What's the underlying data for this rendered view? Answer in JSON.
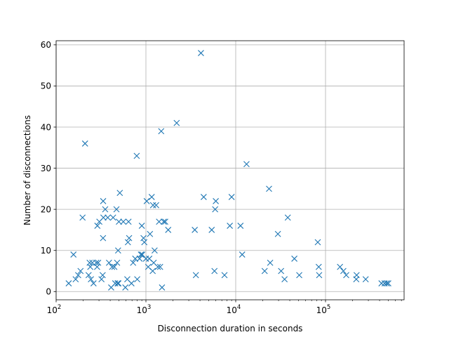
{
  "chart_data": {
    "type": "scatter",
    "title": "",
    "xlabel": "Disconnection duration in seconds",
    "ylabel": "Number of disconnections",
    "xscale": "log",
    "xlim": [
      100,
      750000
    ],
    "ylim": [
      -2,
      61
    ],
    "grid": true,
    "marker": "x",
    "color": "#1f77b4",
    "xticks": [
      {
        "value": 100,
        "base": "10",
        "exp": "2"
      },
      {
        "value": 1000,
        "base": "10",
        "exp": "3"
      },
      {
        "value": 10000,
        "base": "10",
        "exp": "4"
      },
      {
        "value": 100000,
        "base": "10",
        "exp": "5"
      }
    ],
    "yticks": [
      {
        "value": 0,
        "label": "0"
      },
      {
        "value": 10,
        "label": "10"
      },
      {
        "value": 20,
        "label": "20"
      },
      {
        "value": 30,
        "label": "30"
      },
      {
        "value": 40,
        "label": "40"
      },
      {
        "value": 50,
        "label": "50"
      },
      {
        "value": 60,
        "label": "60"
      }
    ],
    "points": [
      [
        138,
        2
      ],
      [
        156,
        9
      ],
      [
        165,
        3
      ],
      [
        176,
        4
      ],
      [
        187,
        5
      ],
      [
        197,
        18
      ],
      [
        210,
        36
      ],
      [
        230,
        4
      ],
      [
        236,
        7
      ],
      [
        240,
        6
      ],
      [
        244,
        3
      ],
      [
        253,
        7
      ],
      [
        261,
        2
      ],
      [
        280,
        7
      ],
      [
        286,
        6
      ],
      [
        288,
        16
      ],
      [
        294,
        7
      ],
      [
        303,
        17
      ],
      [
        320,
        3
      ],
      [
        330,
        4
      ],
      [
        333,
        13
      ],
      [
        334,
        22
      ],
      [
        336,
        18
      ],
      [
        352,
        20
      ],
      [
        376,
        18
      ],
      [
        388,
        7
      ],
      [
        410,
        1
      ],
      [
        420,
        6
      ],
      [
        431,
        18
      ],
      [
        445,
        6
      ],
      [
        455,
        2
      ],
      [
        470,
        20
      ],
      [
        478,
        7
      ],
      [
        484,
        2
      ],
      [
        490,
        10
      ],
      [
        494,
        2
      ],
      [
        500,
        17
      ],
      [
        512,
        24
      ],
      [
        560,
        17
      ],
      [
        590,
        1
      ],
      [
        620,
        3
      ],
      [
        630,
        12
      ],
      [
        640,
        17
      ],
      [
        650,
        13
      ],
      [
        690,
        2
      ],
      [
        720,
        7
      ],
      [
        760,
        8
      ],
      [
        790,
        33
      ],
      [
        800,
        3
      ],
      [
        850,
        8
      ],
      [
        880,
        9
      ],
      [
        900,
        16
      ],
      [
        910,
        9
      ],
      [
        940,
        13
      ],
      [
        960,
        12
      ],
      [
        1000,
        8
      ],
      [
        1020,
        22
      ],
      [
        1060,
        6
      ],
      [
        1090,
        8
      ],
      [
        1110,
        14
      ],
      [
        1160,
        23
      ],
      [
        1190,
        5
      ],
      [
        1200,
        21
      ],
      [
        1220,
        7
      ],
      [
        1250,
        10
      ],
      [
        1300,
        21
      ],
      [
        1360,
        6
      ],
      [
        1400,
        17
      ],
      [
        1440,
        6
      ],
      [
        1480,
        39
      ],
      [
        1510,
        1
      ],
      [
        1580,
        17
      ],
      [
        1640,
        17
      ],
      [
        1770,
        15
      ],
      [
        2200,
        41
      ],
      [
        3500,
        15
      ],
      [
        3600,
        4
      ],
      [
        4100,
        58
      ],
      [
        4400,
        23
      ],
      [
        5400,
        15
      ],
      [
        5800,
        5
      ],
      [
        5900,
        20
      ],
      [
        6000,
        22
      ],
      [
        7500,
        4
      ],
      [
        8600,
        16
      ],
      [
        9000,
        23
      ],
      [
        11300,
        16
      ],
      [
        11800,
        9
      ],
      [
        13200,
        31
      ],
      [
        21000,
        5
      ],
      [
        23500,
        25
      ],
      [
        24200,
        7
      ],
      [
        29500,
        14
      ],
      [
        32000,
        5
      ],
      [
        35000,
        3
      ],
      [
        38000,
        18
      ],
      [
        45000,
        8
      ],
      [
        51000,
        4
      ],
      [
        82000,
        12
      ],
      [
        84000,
        6
      ],
      [
        85000,
        4
      ],
      [
        145000,
        6
      ],
      [
        158000,
        5
      ],
      [
        170000,
        4
      ],
      [
        220000,
        3
      ],
      [
        222000,
        4
      ],
      [
        280000,
        3
      ],
      [
        420000,
        2
      ],
      [
        455000,
        2
      ],
      [
        480000,
        2
      ],
      [
        500000,
        2
      ]
    ]
  }
}
